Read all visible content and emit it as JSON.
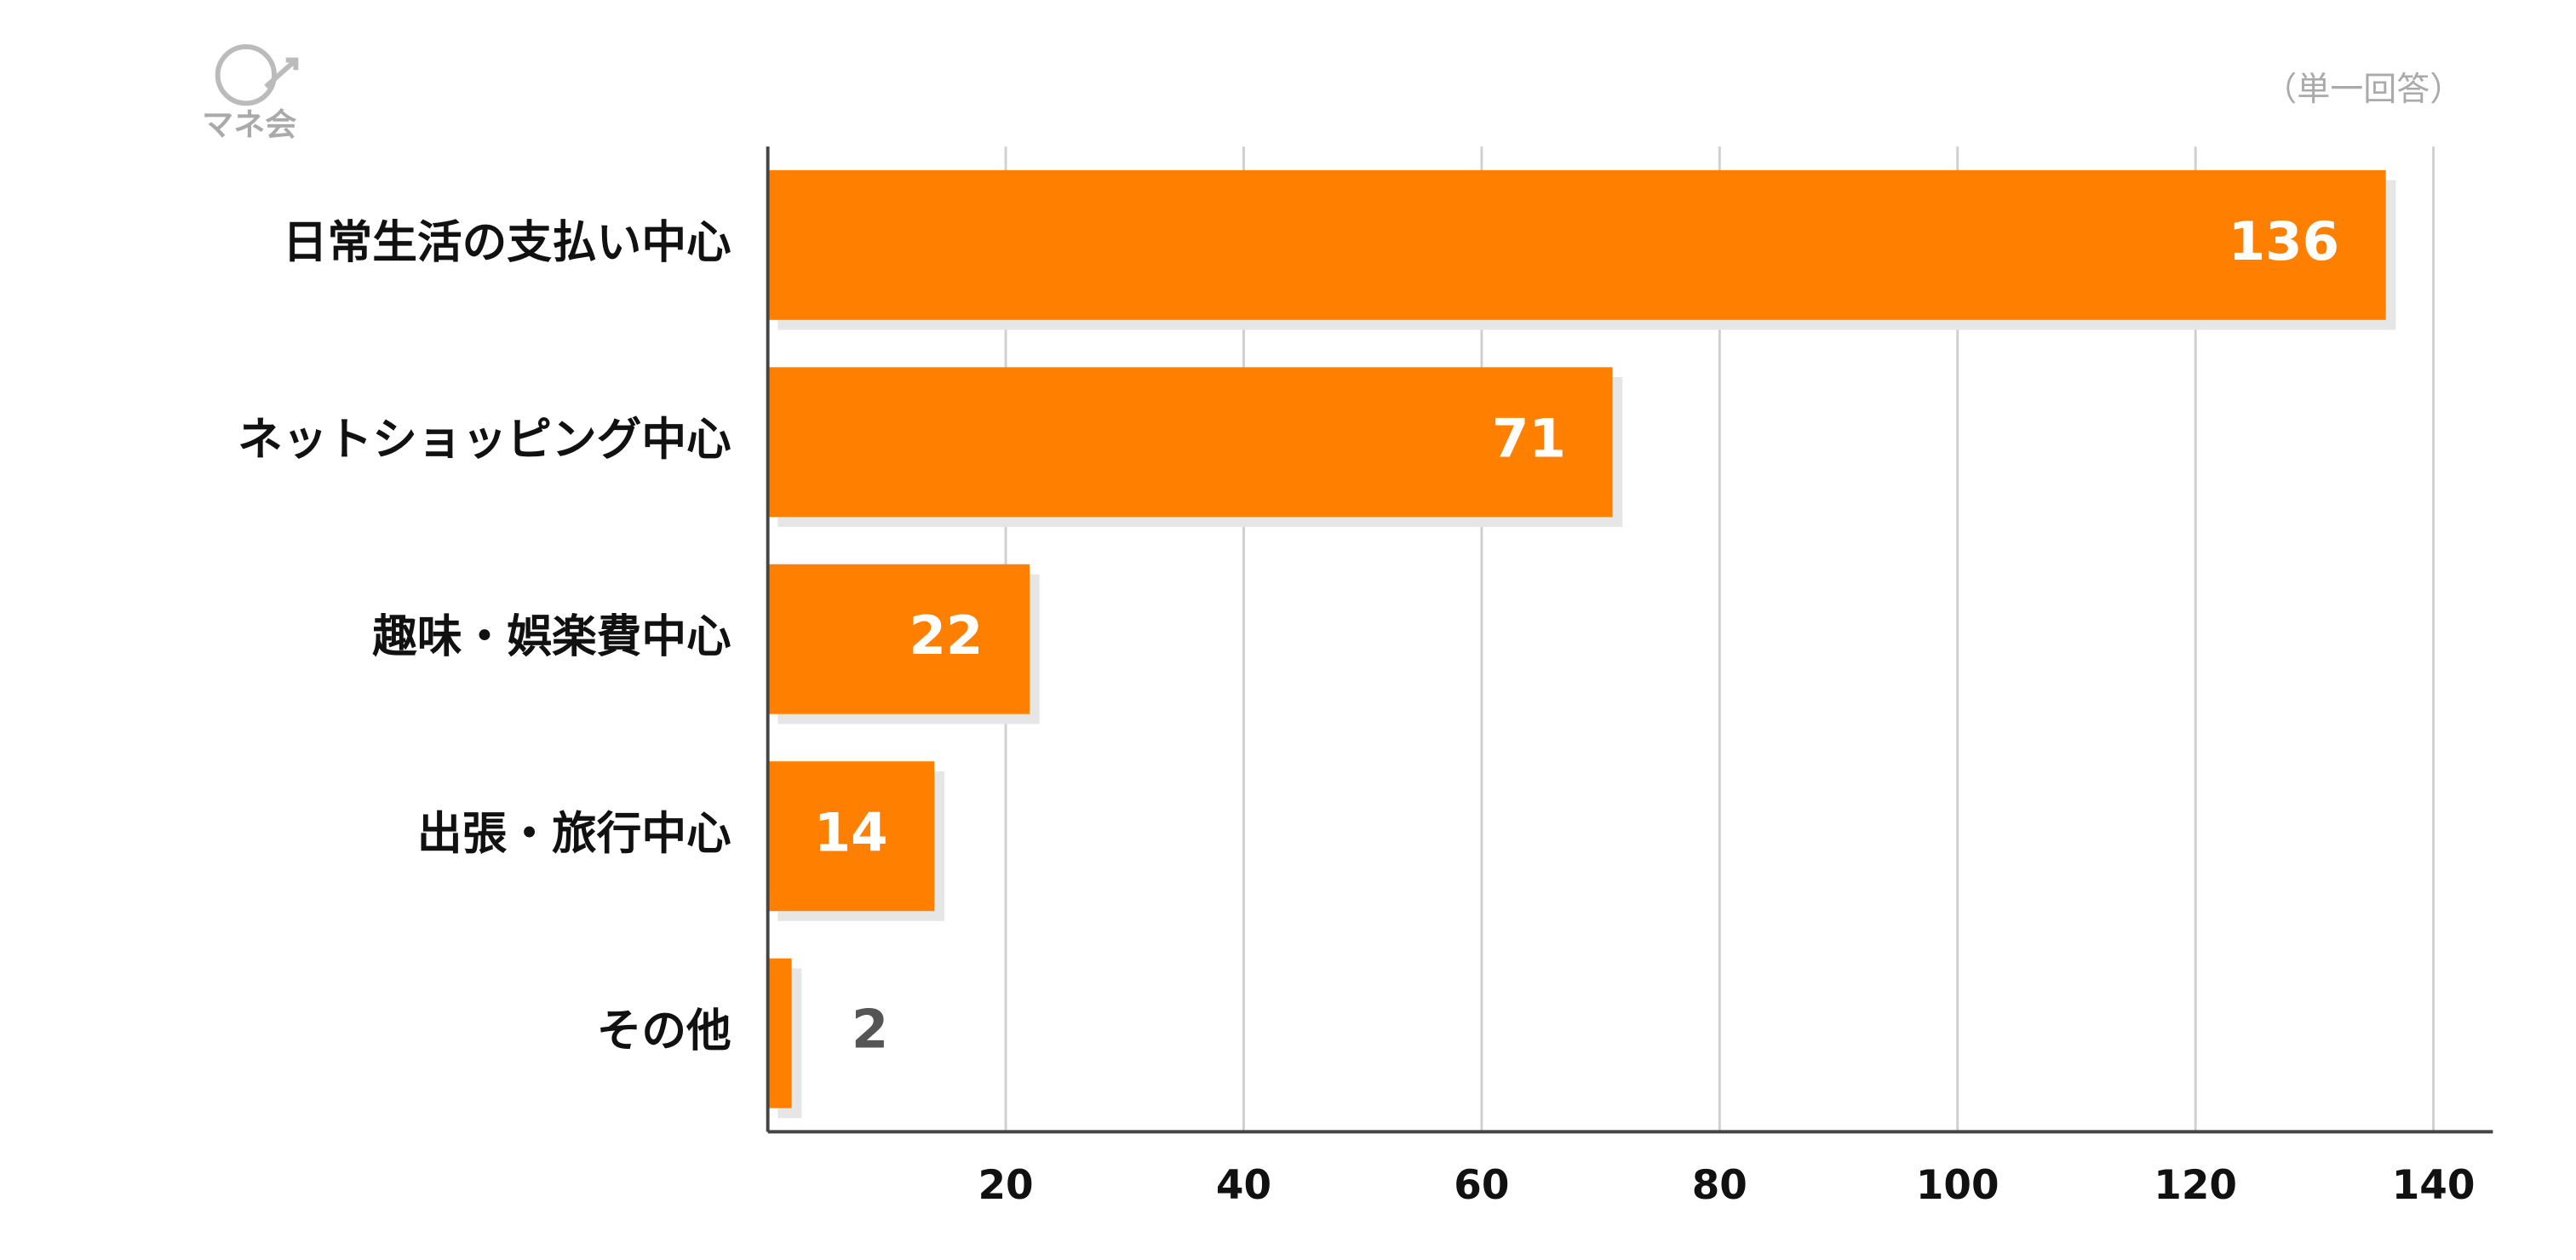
{
  "chart_data": {
    "type": "bar",
    "orientation": "horizontal",
    "logo": "マネ会",
    "annotation": "（単一回答）",
    "categories": [
      "日常生活の支払い中心",
      "ネットショッピング中心",
      "趣味・娯楽費中心",
      "出張・旅行中心",
      "その他"
    ],
    "values": [
      136,
      71,
      22,
      14,
      2
    ],
    "color": "#ff7f00",
    "xlim": [
      0,
      145
    ],
    "xticks": [
      20,
      40,
      60,
      80,
      100,
      120,
      140
    ],
    "grid": true
  }
}
